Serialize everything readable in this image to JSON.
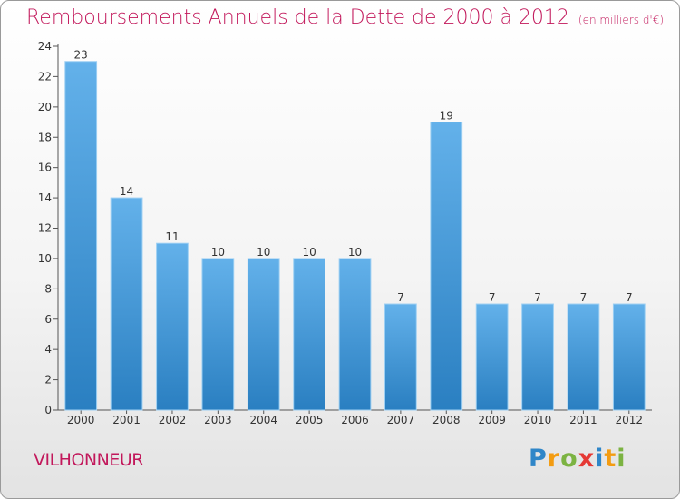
{
  "title": "Remboursements Annuels de la Dette de 2000 à 2012",
  "unit": "(en milliers d'€)",
  "commune": "VILHONNEUR",
  "logo": {
    "text": "Proxiti",
    "letters": [
      "P",
      "r",
      "o",
      "x",
      "i",
      "t",
      "i"
    ]
  },
  "colors": {
    "bar_light": "#63b1ea",
    "bar_dark": "#2a7fc1",
    "title": "#c2185b"
  },
  "chart_data": {
    "type": "bar",
    "categories": [
      "2000",
      "2001",
      "2002",
      "2003",
      "2004",
      "2005",
      "2006",
      "2007",
      "2008",
      "2009",
      "2010",
      "2011",
      "2012"
    ],
    "values": [
      23,
      14,
      11,
      10,
      10,
      10,
      10,
      7,
      19,
      7,
      7,
      7,
      7
    ],
    "ylim": [
      0,
      24
    ],
    "yticks": [
      0,
      2,
      4,
      6,
      8,
      10,
      12,
      14,
      16,
      18,
      20,
      22,
      24
    ],
    "grid": false,
    "data_labels": true
  }
}
